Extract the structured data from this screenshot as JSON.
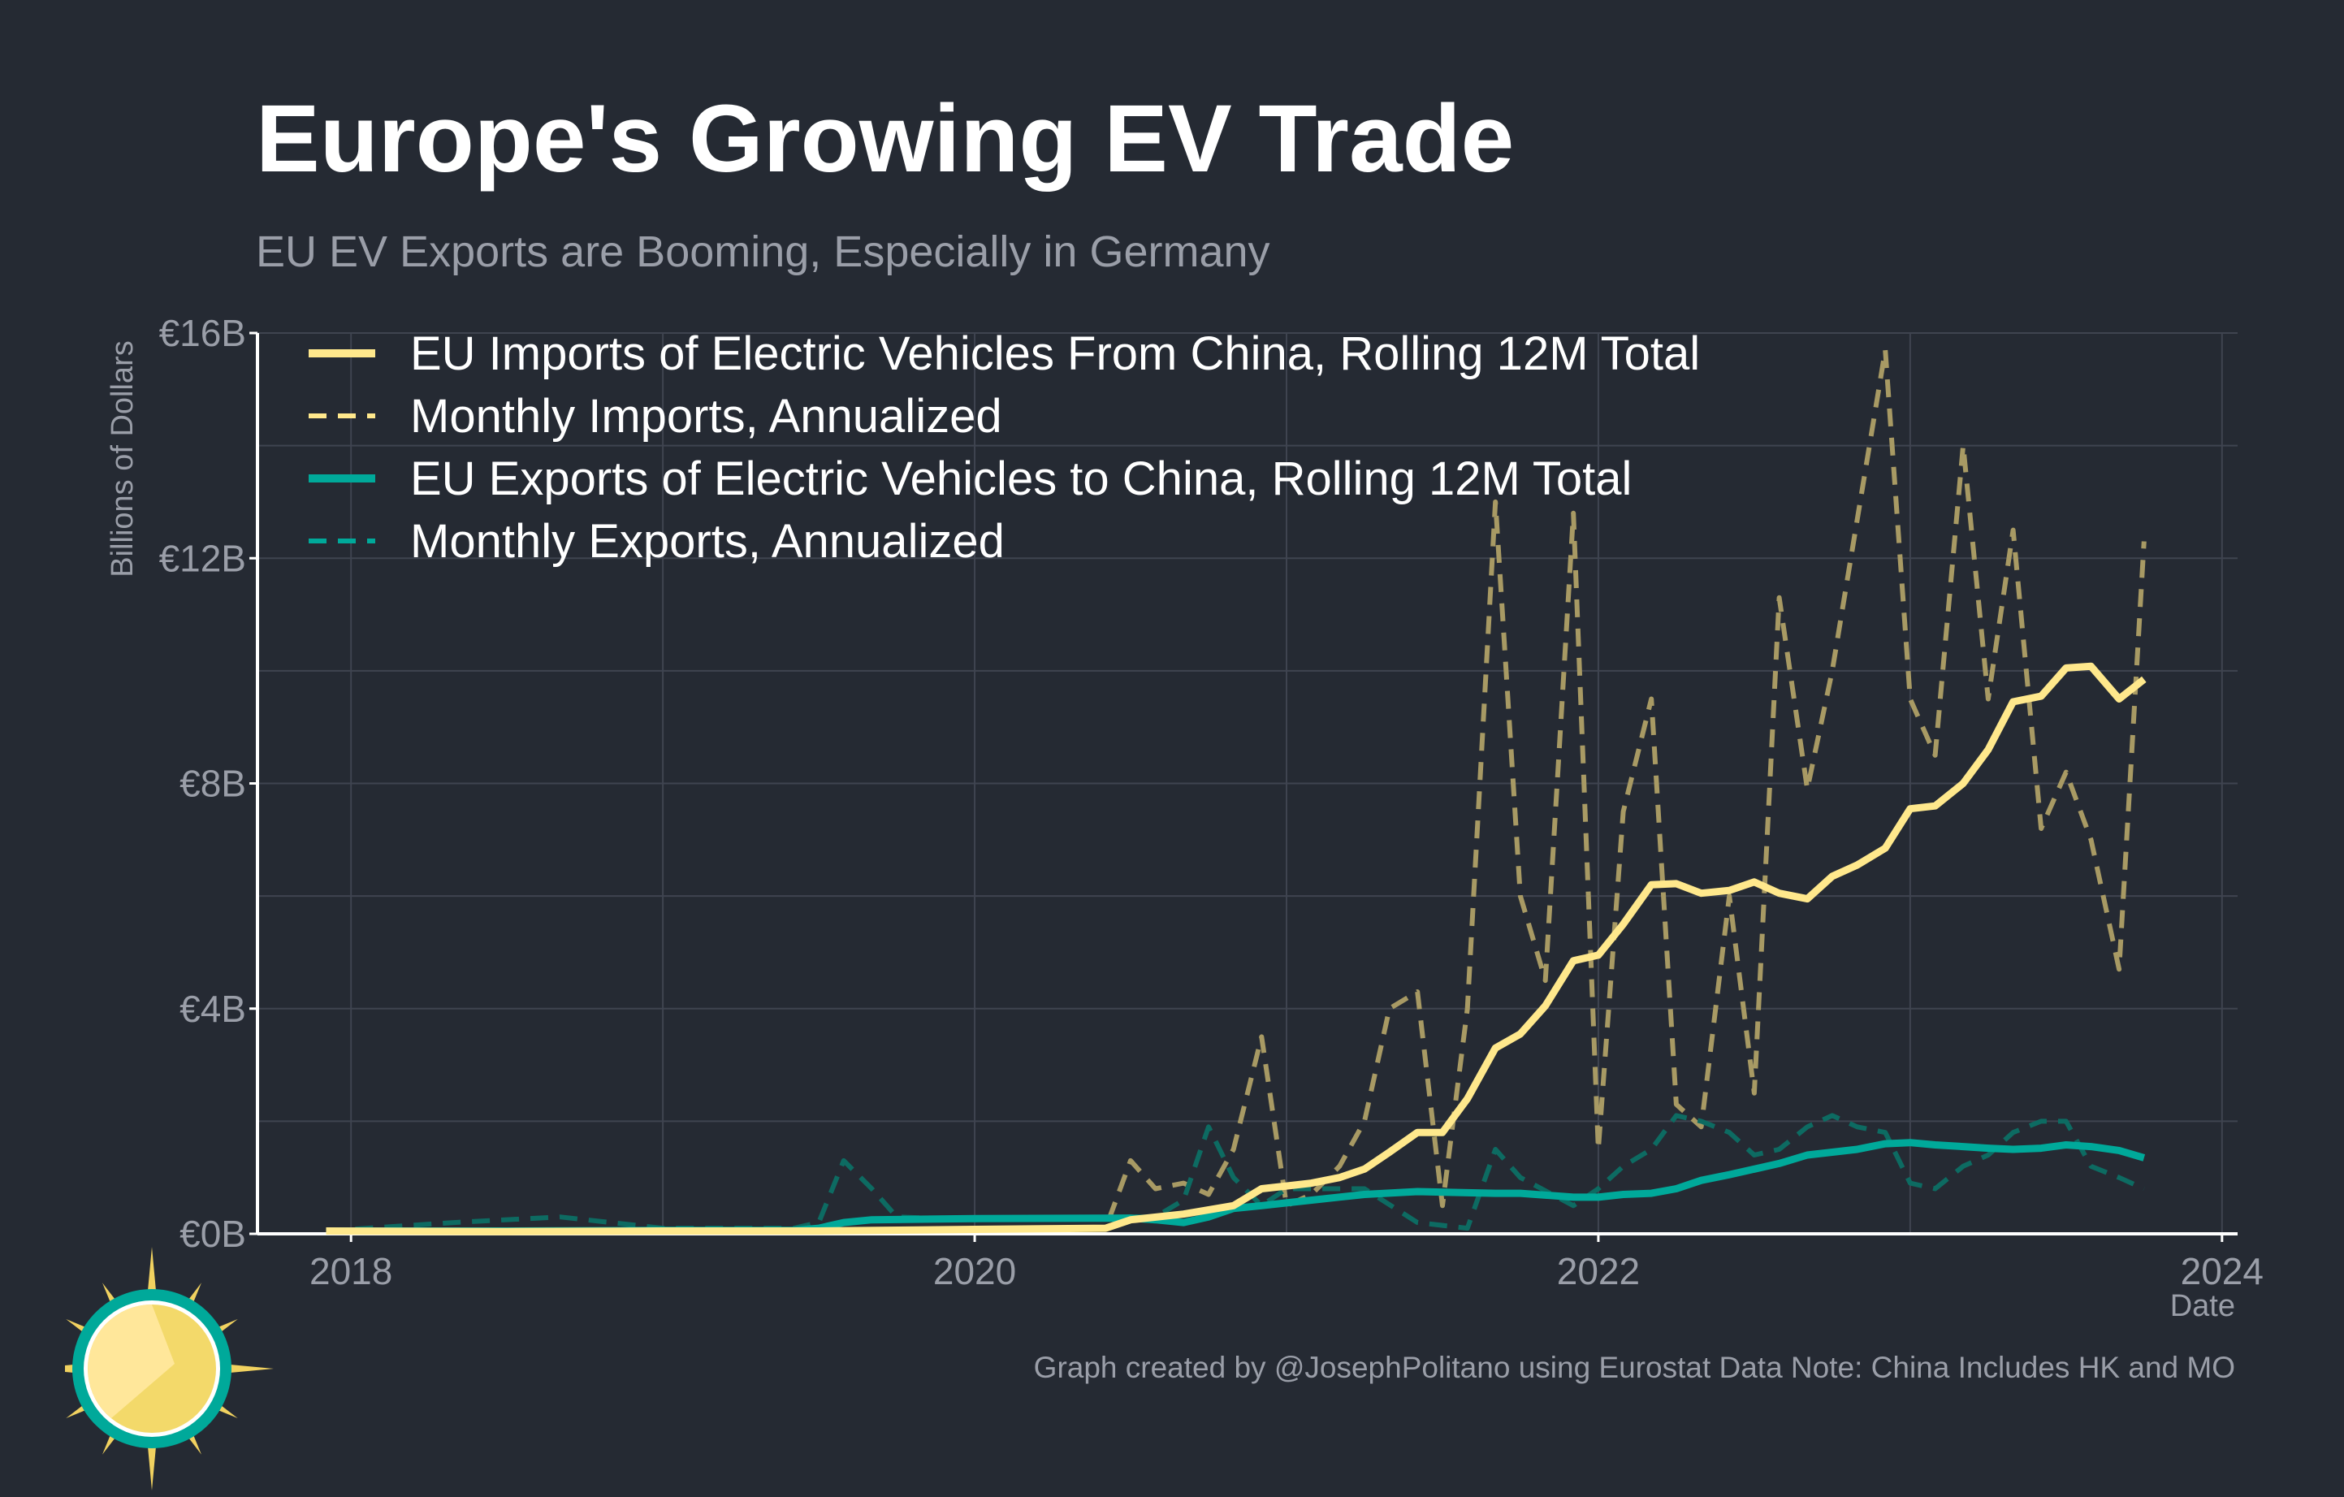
{
  "title": "Europe's Growing EV Trade",
  "subtitle": "EU EV Exports are Booming, Especially in Germany",
  "caption": "Graph created by @JosephPolitano using Eurostat Data  Note: China Includes HK and MO",
  "colors": {
    "background": "#252a33",
    "imports": "#ffe88c",
    "imports_monthly": "#a89a64",
    "exports": "#00a99a",
    "exports_monthly": "#0d6b62",
    "grid": "#3f4450",
    "text_muted": "#9a9ea8"
  },
  "logo": {
    "icon": "sun-logo-icon"
  },
  "chart_data": {
    "type": "line",
    "xlabel": "Date",
    "ylabel": "Billions of Dollars",
    "xlim": [
      2017.7,
      2024.05
    ],
    "ylim": [
      0,
      16
    ],
    "x_ticks": [
      2018,
      2020,
      2022,
      2024
    ],
    "y_ticks": [
      {
        "value": 0,
        "label": "€0B"
      },
      {
        "value": 4,
        "label": "€4B"
      },
      {
        "value": 8,
        "label": "€8B"
      },
      {
        "value": 12,
        "label": "€12B"
      },
      {
        "value": 16,
        "label": "€16B"
      }
    ],
    "grid": true,
    "legend_position": "top-left",
    "series": [
      {
        "name": "EU Imports of Electric Vehicles From China, Rolling 12M Total",
        "style": "solid",
        "color": "#ffe88c",
        "points": [
          [
            2017.92,
            0.05
          ],
          [
            2018.5,
            0.04
          ],
          [
            2019.0,
            0.05
          ],
          [
            2019.5,
            0.05
          ],
          [
            2020.0,
            0.08
          ],
          [
            2020.42,
            0.1
          ],
          [
            2020.5,
            0.25
          ],
          [
            2020.67,
            0.35
          ],
          [
            2020.83,
            0.5
          ],
          [
            2020.92,
            0.8
          ],
          [
            2021.0,
            0.85
          ],
          [
            2021.08,
            0.9
          ],
          [
            2021.17,
            1.0
          ],
          [
            2021.25,
            1.15
          ],
          [
            2021.33,
            1.45
          ],
          [
            2021.42,
            1.8
          ],
          [
            2021.5,
            1.8
          ],
          [
            2021.58,
            2.4
          ],
          [
            2021.67,
            3.3
          ],
          [
            2021.75,
            3.55
          ],
          [
            2021.83,
            4.05
          ],
          [
            2021.92,
            4.85
          ],
          [
            2022.0,
            4.95
          ],
          [
            2022.08,
            5.5
          ],
          [
            2022.17,
            6.2
          ],
          [
            2022.25,
            6.22
          ],
          [
            2022.33,
            6.05
          ],
          [
            2022.42,
            6.1
          ],
          [
            2022.5,
            6.25
          ],
          [
            2022.58,
            6.05
          ],
          [
            2022.67,
            5.95
          ],
          [
            2022.75,
            6.35
          ],
          [
            2022.83,
            6.55
          ],
          [
            2022.92,
            6.85
          ],
          [
            2023.0,
            7.55
          ],
          [
            2023.08,
            7.6
          ],
          [
            2023.17,
            8.0
          ],
          [
            2023.25,
            8.6
          ],
          [
            2023.33,
            9.45
          ],
          [
            2023.42,
            9.55
          ],
          [
            2023.5,
            10.05
          ],
          [
            2023.58,
            10.08
          ],
          [
            2023.67,
            9.5
          ],
          [
            2023.75,
            9.85
          ]
        ]
      },
      {
        "name": "Monthly Imports, Annualized",
        "style": "dashed",
        "color": "#a89a64",
        "points": [
          [
            2017.92,
            0.05
          ],
          [
            2018.5,
            0.05
          ],
          [
            2019.0,
            0.05
          ],
          [
            2019.5,
            0.05
          ],
          [
            2020.0,
            0.1
          ],
          [
            2020.42,
            0.1
          ],
          [
            2020.5,
            1.3
          ],
          [
            2020.58,
            0.8
          ],
          [
            2020.67,
            0.9
          ],
          [
            2020.75,
            0.7
          ],
          [
            2020.83,
            1.5
          ],
          [
            2020.92,
            3.5
          ],
          [
            2021.0,
            0.5
          ],
          [
            2021.08,
            0.7
          ],
          [
            2021.17,
            1.2
          ],
          [
            2021.25,
            2.0
          ],
          [
            2021.33,
            4.0
          ],
          [
            2021.42,
            4.3
          ],
          [
            2021.5,
            0.5
          ],
          [
            2021.58,
            4.0
          ],
          [
            2021.67,
            13.0
          ],
          [
            2021.75,
            6.0
          ],
          [
            2021.83,
            4.5
          ],
          [
            2021.92,
            12.8
          ],
          [
            2022.0,
            1.5
          ],
          [
            2022.08,
            7.5
          ],
          [
            2022.17,
            9.5
          ],
          [
            2022.25,
            2.3
          ],
          [
            2022.33,
            1.9
          ],
          [
            2022.42,
            6.0
          ],
          [
            2022.5,
            2.5
          ],
          [
            2022.58,
            11.3
          ],
          [
            2022.67,
            7.9
          ],
          [
            2022.75,
            10.0
          ],
          [
            2022.92,
            15.7
          ],
          [
            2023.0,
            9.5
          ],
          [
            2023.08,
            8.5
          ],
          [
            2023.17,
            14.0
          ],
          [
            2023.25,
            9.5
          ],
          [
            2023.33,
            12.5
          ],
          [
            2023.42,
            7.2
          ],
          [
            2023.5,
            8.2
          ],
          [
            2023.58,
            7.0
          ],
          [
            2023.67,
            4.7
          ],
          [
            2023.75,
            12.3
          ]
        ]
      },
      {
        "name": "EU Exports of Electric Vehicles to China, Rolling 12M Total",
        "style": "solid",
        "color": "#00a99a",
        "points": [
          [
            2017.92,
            0.05
          ],
          [
            2018.5,
            0.05
          ],
          [
            2019.0,
            0.06
          ],
          [
            2019.42,
            0.06
          ],
          [
            2019.5,
            0.1
          ],
          [
            2019.58,
            0.2
          ],
          [
            2019.67,
            0.25
          ],
          [
            2020.0,
            0.27
          ],
          [
            2020.5,
            0.28
          ],
          [
            2020.58,
            0.25
          ],
          [
            2020.67,
            0.2
          ],
          [
            2020.75,
            0.3
          ],
          [
            2020.83,
            0.45
          ],
          [
            2020.92,
            0.5
          ],
          [
            2021.0,
            0.55
          ],
          [
            2021.25,
            0.7
          ],
          [
            2021.42,
            0.75
          ],
          [
            2021.67,
            0.72
          ],
          [
            2021.75,
            0.72
          ],
          [
            2021.92,
            0.65
          ],
          [
            2022.0,
            0.65
          ],
          [
            2022.08,
            0.7
          ],
          [
            2022.17,
            0.72
          ],
          [
            2022.25,
            0.8
          ],
          [
            2022.33,
            0.95
          ],
          [
            2022.42,
            1.05
          ],
          [
            2022.5,
            1.15
          ],
          [
            2022.58,
            1.25
          ],
          [
            2022.67,
            1.4
          ],
          [
            2022.75,
            1.45
          ],
          [
            2022.83,
            1.5
          ],
          [
            2022.92,
            1.6
          ],
          [
            2023.0,
            1.62
          ],
          [
            2023.08,
            1.58
          ],
          [
            2023.17,
            1.55
          ],
          [
            2023.25,
            1.52
          ],
          [
            2023.33,
            1.5
          ],
          [
            2023.42,
            1.52
          ],
          [
            2023.5,
            1.58
          ],
          [
            2023.58,
            1.55
          ],
          [
            2023.67,
            1.48
          ],
          [
            2023.75,
            1.35
          ]
        ]
      },
      {
        "name": "Monthly Exports, Annualized",
        "style": "dashed",
        "color": "#0d6b62",
        "points": [
          [
            2017.92,
            0.05
          ],
          [
            2018.33,
            0.2
          ],
          [
            2018.67,
            0.3
          ],
          [
            2019.0,
            0.1
          ],
          [
            2019.42,
            0.1
          ],
          [
            2019.5,
            0.2
          ],
          [
            2019.58,
            1.3
          ],
          [
            2019.67,
            0.8
          ],
          [
            2019.75,
            0.3
          ],
          [
            2020.0,
            0.25
          ],
          [
            2020.5,
            0.3
          ],
          [
            2020.58,
            0.3
          ],
          [
            2020.67,
            0.6
          ],
          [
            2020.75,
            1.9
          ],
          [
            2020.83,
            1.0
          ],
          [
            2020.92,
            0.5
          ],
          [
            2021.0,
            0.8
          ],
          [
            2021.25,
            0.8
          ],
          [
            2021.42,
            0.2
          ],
          [
            2021.58,
            0.1
          ],
          [
            2021.67,
            1.5
          ],
          [
            2021.75,
            1.0
          ],
          [
            2021.92,
            0.5
          ],
          [
            2022.0,
            0.8
          ],
          [
            2022.08,
            1.2
          ],
          [
            2022.17,
            1.5
          ],
          [
            2022.25,
            2.1
          ],
          [
            2022.33,
            2.0
          ],
          [
            2022.42,
            1.8
          ],
          [
            2022.5,
            1.4
          ],
          [
            2022.58,
            1.5
          ],
          [
            2022.67,
            1.9
          ],
          [
            2022.75,
            2.1
          ],
          [
            2022.83,
            1.9
          ],
          [
            2022.92,
            1.8
          ],
          [
            2023.0,
            0.9
          ],
          [
            2023.08,
            0.8
          ],
          [
            2023.17,
            1.2
          ],
          [
            2023.25,
            1.4
          ],
          [
            2023.33,
            1.8
          ],
          [
            2023.42,
            2.0
          ],
          [
            2023.5,
            2.0
          ],
          [
            2023.58,
            1.2
          ],
          [
            2023.67,
            1.0
          ],
          [
            2023.75,
            0.8
          ]
        ]
      }
    ]
  }
}
